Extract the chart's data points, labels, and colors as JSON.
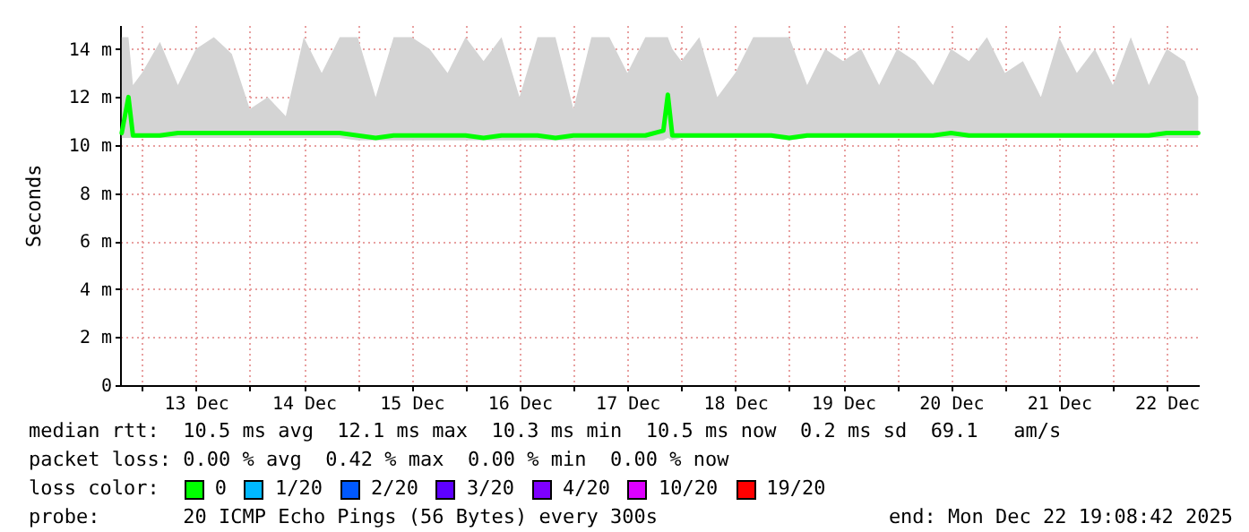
{
  "chart_data": {
    "type": "line",
    "ylabel": "Seconds",
    "legend_title": "loss color:",
    "legend": "bottom",
    "grid": true,
    "line_style": "solid",
    "annotations": [
      "median rtt:  10.5 ms avg  12.1 ms max  10.3 ms min  10.5 ms now  0.2 ms sd  69.1   am/s",
      "packet loss: 0.00 % avg  0.42 % max  0.00 % min  0.00 % now",
      "probe:       20 ICMP Echo Pings (56 Bytes) every 300s",
      "end: Mon Dec 22 19:08:42 2025"
    ],
    "xlim": [
      "2025-12-12T19:08",
      "2025-12-22T19:08"
    ],
    "xticks": [
      {
        "value": "2025-12-13T00:00",
        "label": null
      },
      {
        "value": "2025-12-13T12:00",
        "label": "13 Dec"
      },
      {
        "value": "2025-12-14T00:00",
        "label": null
      },
      {
        "value": "2025-12-14T12:00",
        "label": "14 Dec"
      },
      {
        "value": "2025-12-15T00:00",
        "label": null
      },
      {
        "value": "2025-12-15T12:00",
        "label": "15 Dec"
      },
      {
        "value": "2025-12-16T00:00",
        "label": null
      },
      {
        "value": "2025-12-16T12:00",
        "label": "16 Dec"
      },
      {
        "value": "2025-12-17T00:00",
        "label": null
      },
      {
        "value": "2025-12-17T12:00",
        "label": "17 Dec"
      },
      {
        "value": "2025-12-18T00:00",
        "label": null
      },
      {
        "value": "2025-12-18T12:00",
        "label": "18 Dec"
      },
      {
        "value": "2025-12-19T00:00",
        "label": null
      },
      {
        "value": "2025-12-19T12:00",
        "label": "19 Dec"
      },
      {
        "value": "2025-12-20T00:00",
        "label": null
      },
      {
        "value": "2025-12-20T12:00",
        "label": "20 Dec"
      },
      {
        "value": "2025-12-21T00:00",
        "label": null
      },
      {
        "value": "2025-12-21T12:00",
        "label": "21 Dec"
      },
      {
        "value": "2025-12-22T00:00",
        "label": null
      },
      {
        "value": "2025-12-22T12:00",
        "label": "22 Dec"
      }
    ],
    "ylim": [
      0,
      15
    ],
    "yticks": [
      0,
      {
        "value": 2,
        "label": "2 m"
      },
      {
        "value": 4,
        "label": "4 m"
      },
      {
        "value": 6,
        "label": "6 m"
      },
      {
        "value": 8,
        "label": "8 m"
      },
      {
        "value": 10,
        "label": "10 m"
      },
      {
        "value": 12,
        "label": "12 m"
      },
      {
        "value": 14,
        "label": "14 m"
      }
    ],
    "x": [
      "2025-12-12T19:30",
      "2025-12-12T21:00",
      "2025-12-12T22:00",
      "2025-12-13T00:00",
      "2025-12-13T04:00",
      "2025-12-13T08:00",
      "2025-12-13T12:00",
      "2025-12-13T16:00",
      "2025-12-13T20:00",
      "2025-12-14T00:00",
      "2025-12-14T04:00",
      "2025-12-14T08:00",
      "2025-12-14T12:00",
      "2025-12-14T16:00",
      "2025-12-14T20:00",
      "2025-12-15T00:00",
      "2025-12-15T04:00",
      "2025-12-15T08:00",
      "2025-12-15T12:00",
      "2025-12-15T16:00",
      "2025-12-15T20:00",
      "2025-12-16T00:00",
      "2025-12-16T04:00",
      "2025-12-16T08:00",
      "2025-12-16T12:00",
      "2025-12-16T16:00",
      "2025-12-16T20:00",
      "2025-12-17T00:00",
      "2025-12-17T04:00",
      "2025-12-17T08:00",
      "2025-12-17T12:00",
      "2025-12-17T16:00",
      "2025-12-17T20:00",
      "2025-12-17T21:00",
      "2025-12-17T22:00",
      "2025-12-18T00:00",
      "2025-12-18T04:00",
      "2025-12-18T08:00",
      "2025-12-18T12:00",
      "2025-12-18T16:00",
      "2025-12-18T20:00",
      "2025-12-19T00:00",
      "2025-12-19T04:00",
      "2025-12-19T08:00",
      "2025-12-19T12:00",
      "2025-12-19T16:00",
      "2025-12-19T20:00",
      "2025-12-20T00:00",
      "2025-12-20T04:00",
      "2025-12-20T08:00",
      "2025-12-20T12:00",
      "2025-12-20T16:00",
      "2025-12-20T20:00",
      "2025-12-21T00:00",
      "2025-12-21T04:00",
      "2025-12-21T08:00",
      "2025-12-21T12:00",
      "2025-12-21T16:00",
      "2025-12-21T20:00",
      "2025-12-22T00:00",
      "2025-12-22T04:00",
      "2025-12-22T08:00",
      "2025-12-22T12:00",
      "2025-12-22T16:00",
      "2025-12-22T19:00"
    ],
    "series": [
      {
        "name": "0",
        "color": "#00ff00",
        "values": [
          10.5,
          12.0,
          10.4,
          10.4,
          10.4,
          10.5,
          10.5,
          10.5,
          10.5,
          10.5,
          10.5,
          10.5,
          10.5,
          10.5,
          10.5,
          10.4,
          10.3,
          10.4,
          10.4,
          10.4,
          10.4,
          10.4,
          10.3,
          10.4,
          10.4,
          10.4,
          10.3,
          10.4,
          10.4,
          10.4,
          10.4,
          10.4,
          10.6,
          12.1,
          10.4,
          10.4,
          10.4,
          10.4,
          10.4,
          10.4,
          10.4,
          10.3,
          10.4,
          10.4,
          10.4,
          10.4,
          10.4,
          10.4,
          10.4,
          10.4,
          10.5,
          10.4,
          10.4,
          10.4,
          10.4,
          10.4,
          10.4,
          10.4,
          10.4,
          10.4,
          10.4,
          10.4,
          10.5,
          10.5,
          10.5
        ],
        "lower": [
          10.3,
          10.3,
          10.3,
          10.3,
          10.3,
          10.3,
          10.3,
          10.3,
          10.3,
          10.3,
          10.3,
          10.3,
          10.3,
          10.3,
          10.3,
          10.2,
          10.2,
          10.2,
          10.2,
          10.2,
          10.2,
          10.2,
          10.2,
          10.2,
          10.2,
          10.2,
          10.2,
          10.2,
          10.2,
          10.2,
          10.2,
          10.2,
          10.2,
          10.3,
          10.2,
          10.3,
          10.3,
          10.3,
          10.3,
          10.3,
          10.3,
          10.2,
          10.3,
          10.3,
          10.3,
          10.3,
          10.3,
          10.3,
          10.3,
          10.3,
          10.3,
          10.3,
          10.3,
          10.3,
          10.3,
          10.3,
          10.3,
          10.3,
          10.3,
          10.3,
          10.3,
          10.3,
          10.3,
          10.3,
          10.3
        ],
        "upper": [
          14.5,
          14.5,
          12.5,
          13.0,
          14.3,
          12.5,
          14.0,
          14.5,
          13.8,
          11.5,
          12.0,
          11.2,
          14.5,
          13.0,
          14.5,
          14.5,
          12.0,
          14.5,
          14.5,
          14.0,
          13.0,
          14.5,
          13.5,
          14.5,
          12.0,
          14.5,
          14.5,
          11.5,
          14.5,
          14.5,
          13.0,
          14.5,
          14.5,
          14.5,
          14.0,
          13.5,
          14.5,
          12.0,
          13.0,
          14.5,
          14.5,
          14.5,
          12.5,
          14.0,
          13.5,
          14.0,
          12.5,
          14.0,
          13.5,
          12.5,
          14.0,
          13.5,
          14.5,
          13.0,
          13.5,
          12.0,
          14.5,
          13.0,
          14.0,
          12.5,
          14.5,
          12.5,
          14.0,
          13.5,
          12.0
        ]
      },
      {
        "name": "1/20",
        "color": "#00b8ff",
        "values": [
          null,
          null,
          null,
          null,
          null,
          null,
          null,
          null,
          null,
          null,
          null,
          null,
          null,
          null,
          null,
          null,
          null,
          null,
          null,
          null,
          null,
          null,
          null,
          null,
          null,
          null,
          null,
          null,
          null,
          null,
          null,
          null,
          null,
          null,
          null,
          null,
          null,
          null,
          null,
          null,
          null,
          null,
          null,
          null,
          null,
          null,
          null,
          null,
          null,
          null,
          null,
          null,
          null,
          null,
          null,
          null,
          null,
          null,
          null,
          null,
          null,
          null,
          null,
          null,
          null
        ]
      },
      {
        "name": "2/20",
        "color": "#0059ff",
        "values": [
          null,
          null,
          null,
          null,
          null,
          null,
          null,
          null,
          null,
          null,
          null,
          null,
          null,
          null,
          null,
          null,
          null,
          null,
          null,
          null,
          null,
          null,
          null,
          null,
          null,
          null,
          null,
          null,
          null,
          null,
          null,
          null,
          null,
          null,
          null,
          null,
          null,
          null,
          null,
          null,
          null,
          null,
          null,
          null,
          null,
          null,
          null,
          null,
          null,
          null,
          null,
          null,
          null,
          null,
          null,
          null,
          null,
          null,
          null,
          null,
          null,
          null,
          null,
          null,
          null
        ]
      },
      {
        "name": "3/20",
        "color": "#5e00ff",
        "values": [
          null,
          null,
          null,
          null,
          null,
          null,
          null,
          null,
          null,
          null,
          null,
          null,
          null,
          null,
          null,
          null,
          null,
          null,
          null,
          null,
          null,
          null,
          null,
          null,
          null,
          null,
          null,
          null,
          null,
          null,
          null,
          null,
          null,
          null,
          null,
          null,
          null,
          null,
          null,
          null,
          null,
          null,
          null,
          null,
          null,
          null,
          null,
          null,
          null,
          null,
          null,
          null,
          null,
          null,
          null,
          null,
          null,
          null,
          null,
          null,
          null,
          null,
          null,
          null,
          null
        ]
      },
      {
        "name": "4/20",
        "color": "#7e00ff",
        "values": [
          null,
          null,
          null,
          null,
          null,
          null,
          null,
          null,
          null,
          null,
          null,
          null,
          null,
          null,
          null,
          null,
          null,
          null,
          null,
          null,
          null,
          null,
          null,
          null,
          null,
          null,
          null,
          null,
          null,
          null,
          null,
          null,
          null,
          null,
          null,
          null,
          null,
          null,
          null,
          null,
          null,
          null,
          null,
          null,
          null,
          null,
          null,
          null,
          null,
          null,
          null,
          null,
          null,
          null,
          null,
          null,
          null,
          null,
          null,
          null,
          null,
          null,
          null,
          null,
          null
        ]
      },
      {
        "name": "10/20",
        "color": "#dd00ff",
        "values": [
          null,
          null,
          null,
          null,
          null,
          null,
          null,
          null,
          null,
          null,
          null,
          null,
          null,
          null,
          null,
          null,
          null,
          null,
          null,
          null,
          null,
          null,
          null,
          null,
          null,
          null,
          null,
          null,
          null,
          null,
          null,
          null,
          null,
          null,
          null,
          null,
          null,
          null,
          null,
          null,
          null,
          null,
          null,
          null,
          null,
          null,
          null,
          null,
          null,
          null,
          null,
          null,
          null,
          null,
          null,
          null,
          null,
          null,
          null,
          null,
          null,
          null,
          null,
          null,
          null
        ]
      },
      {
        "name": "19/20",
        "color": "#ff0000",
        "values": [
          null,
          null,
          null,
          null,
          null,
          null,
          null,
          null,
          null,
          null,
          null,
          null,
          null,
          null,
          null,
          null,
          null,
          null,
          null,
          null,
          null,
          null,
          null,
          null,
          null,
          null,
          null,
          null,
          null,
          null,
          null,
          null,
          null,
          null,
          null,
          null,
          null,
          null,
          null,
          null,
          null,
          null,
          null,
          null,
          null,
          null,
          null,
          null,
          null,
          null,
          null,
          null,
          null,
          null,
          null,
          null,
          null,
          null,
          null,
          null,
          null,
          null,
          null,
          null,
          null
        ]
      }
    ]
  }
}
